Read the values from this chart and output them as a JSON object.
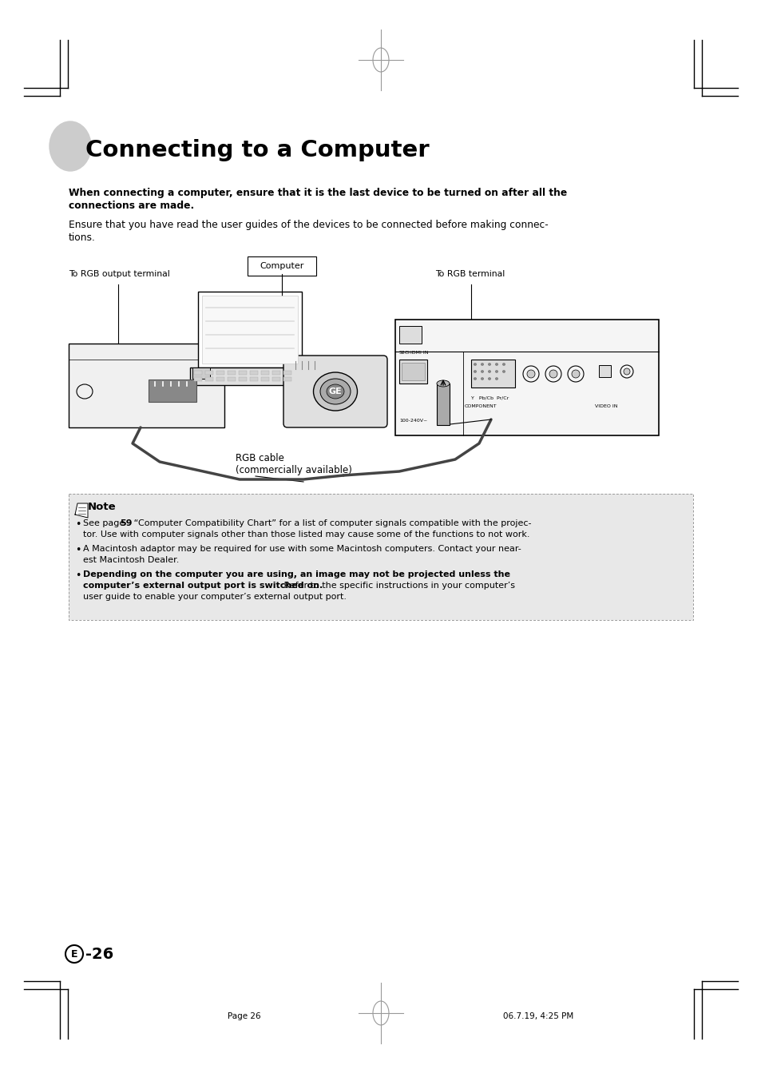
{
  "bg_color": "#ffffff",
  "page_title": "Connecting to a Computer",
  "bold_text_line1": "When connecting a computer, ensure that it is the last device to be turned on after all the",
  "bold_text_line2": "connections are made.",
  "normal_text_line1": "Ensure that you have read the user guides of the devices to be connected before making connec-",
  "normal_text_line2": "tions.",
  "note_bg_color": "#e8e8e8",
  "note_border_color": "#999999",
  "note_title": "Note",
  "note_b1_normal": "See page ",
  "note_b1_bold": "59",
  "note_b1_rest": " “Computer Compatibility Chart” for a list of computer signals compatible with the projec-",
  "note_b1_line2": "tor. Use with computer signals other than those listed may cause some of the functions to not work.",
  "note_b2_line1": "A Macintosh adaptor may be required for use with some Macintosh computers. Contact your near-",
  "note_b2_line2": "est Macintosh Dealer.",
  "note_b3_bold": "Depending on the computer you are using, an image may not be projected unless the",
  "note_b3_bold2": "computer’s external output port is switched on.",
  "note_b3_rest": " Refer to the specific instructions in your computer’s",
  "note_b3_line3": "user guide to enable your computer’s external output port.",
  "diagram_label_computer": "Computer",
  "diagram_label_rgb_out": "To RGB output terminal",
  "diagram_label_rgb_in": "To RGB terminal",
  "diagram_label_cable1": "RGB cable",
  "diagram_label_cable2": "(commercially available)",
  "footer_left": "Page 26",
  "footer_right": "06.7.19, 4:25 PM",
  "page_num_circle": "E",
  "page_num": "-26",
  "margin_color": "#000000",
  "crosshair_color": "#999999",
  "title_circle_color": "#cccccc"
}
